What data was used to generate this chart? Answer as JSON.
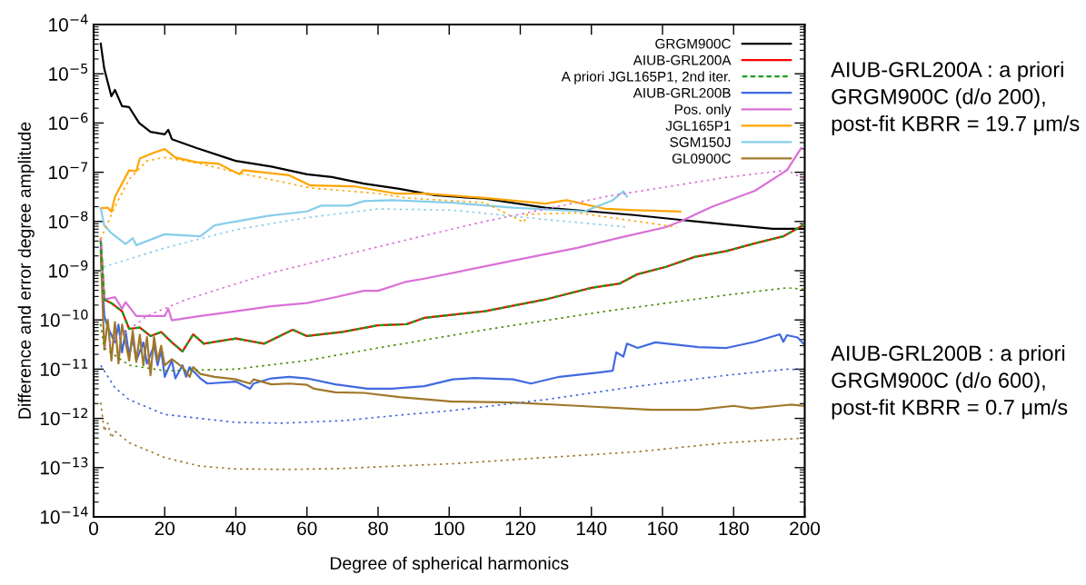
{
  "chart_data": {
    "type": "line",
    "xlabel": "Degree of spherical harmonics",
    "ylabel": "Difference and error degree amplitude",
    "log": "y",
    "xlim": [
      0,
      200
    ],
    "xticks": [
      0,
      20,
      40,
      60,
      80,
      100,
      120,
      140,
      160,
      180,
      200
    ],
    "ylim": [
      1e-14,
      0.0001
    ],
    "yticks": [
      {
        "value": 1e-14,
        "label": "10$^{−14}$"
      },
      {
        "value": 1e-13,
        "label": "10$^{−13}$"
      },
      {
        "value": 1e-12,
        "label": "10$^{−12}$"
      },
      {
        "value": 1e-11,
        "label": "10$^{−11}$"
      },
      {
        "value": 1e-10,
        "label": "10$^{−10}$"
      },
      {
        "value": 1e-09,
        "label": "10$^{−9}$"
      },
      {
        "value": 1e-08,
        "label": "10$^{−8}$"
      },
      {
        "value": 1e-07,
        "label": "10$^{−7}$"
      },
      {
        "value": 1e-06,
        "label": "10$^{−6}$"
      },
      {
        "value": 1e-05,
        "label": "10$^{−5}$"
      },
      {
        "value": 0.0001,
        "label": "10$^{−4}$"
      }
    ],
    "grid": false,
    "legend": "top right",
    "marker": "none",
    "series": [
      {
        "name": "GRGM900C",
        "color": "#000000",
        "line_style": "solid",
        "x": [
          2,
          3,
          5,
          6,
          8,
          10,
          12.8,
          16,
          20,
          21,
          22,
          29,
          40,
          50,
          60,
          67,
          76,
          86,
          96,
          110,
          127,
          140,
          152,
          165,
          178,
          191,
          200
        ],
        "values": [
          4.1e-05,
          1.26e-05,
          3.5e-06,
          4.7e-06,
          2.2e-06,
          2.1e-06,
          1e-06,
          6.6e-07,
          5.9e-07,
          7.3e-07,
          4.7e-07,
          3.1e-07,
          1.7e-07,
          1.3e-07,
          9.1e-08,
          8e-08,
          5.9e-08,
          4.6e-08,
          3.4e-08,
          2.9e-08,
          1.9e-08,
          1.6e-08,
          1.35e-08,
          1.08e-08,
          8.7e-09,
          7.1e-09,
          7.1e-09
        ]
      },
      {
        "name": "AIUB-GRL200A",
        "color": "#ff0000",
        "line_style": "solid",
        "x": [
          2,
          3,
          5,
          8,
          10,
          13,
          16,
          19,
          22,
          25,
          28,
          31,
          40,
          48,
          56,
          60,
          70,
          80,
          88,
          93,
          110,
          127,
          140,
          148,
          153,
          161,
          169,
          178,
          186,
          194,
          200
        ],
        "values": [
          4e-09,
          2.6e-10,
          2.2e-10,
          1.5e-10,
          6.6e-11,
          7e-11,
          4.7e-11,
          5.7e-11,
          3.5e-11,
          2.3e-11,
          5.1e-11,
          3.3e-11,
          4.2e-11,
          3.3e-11,
          6.3e-11,
          4.7e-11,
          5.7e-11,
          7.8e-11,
          8.2e-11,
          1.1e-10,
          1.5e-10,
          2.6e-10,
          4.5e-10,
          5.5e-10,
          8.5e-10,
          1.2e-09,
          1.9e-09,
          2.5e-09,
          3.6e-09,
          5e-09,
          8.7e-09
        ]
      },
      {
        "name": "A priori JGL165P1, 2nd iter.",
        "color": "#1aa01a",
        "line_style": "dashed",
        "x": [
          2,
          3,
          5,
          8,
          10,
          13,
          16,
          19,
          22,
          25,
          28,
          31,
          40,
          48,
          56,
          60,
          70,
          80,
          88,
          93,
          110,
          127,
          140,
          148,
          153,
          161,
          169,
          178,
          186,
          194,
          200
        ],
        "values": [
          4e-09,
          2.6e-10,
          2.2e-10,
          1.5e-10,
          6.6e-11,
          7e-11,
          4.7e-11,
          5.7e-11,
          3.5e-11,
          2.3e-11,
          5.1e-11,
          3.3e-11,
          4.2e-11,
          3.3e-11,
          6.3e-11,
          4.7e-11,
          5.7e-11,
          7.8e-11,
          8.2e-11,
          1.1e-10,
          1.5e-10,
          2.6e-10,
          4.5e-10,
          5.5e-10,
          8.5e-10,
          1.2e-09,
          1.9e-09,
          2.5e-09,
          3.6e-09,
          5e-09,
          8.7e-09
        ]
      },
      {
        "name": "AIUB-GRL200B",
        "color": "#4169e1",
        "line_style": "solid",
        "x": [
          2,
          3,
          4,
          6,
          7,
          8,
          9,
          10,
          11,
          12,
          14,
          15,
          17,
          18,
          19,
          20,
          22,
          23,
          25,
          26,
          27,
          30,
          32,
          40,
          44,
          45,
          50,
          55,
          60,
          68,
          77,
          84,
          93,
          101,
          107,
          118,
          123,
          131,
          142,
          146,
          147,
          149,
          150,
          153,
          158,
          170,
          178,
          186,
          193,
          194,
          195,
          198,
          200
        ],
        "values": [
          3e-09,
          1.2e-10,
          7e-11,
          3.5e-11,
          8e-11,
          2.2e-11,
          6e-11,
          1.8e-11,
          4.5e-11,
          1.5e-11,
          3.5e-11,
          1.3e-11,
          3e-11,
          1.2e-11,
          2.5e-11,
          7e-12,
          1.5e-11,
          6.5e-12,
          1.2e-11,
          7e-12,
          1.1e-11,
          6.5e-12,
          5.1e-12,
          5.6e-12,
          4e-12,
          5.1e-12,
          6.5e-12,
          7e-12,
          6.5e-12,
          4.9e-12,
          4e-12,
          4e-12,
          4.5e-12,
          6.2e-12,
          6.6e-12,
          6.2e-12,
          5.1e-12,
          7e-12,
          8.5e-12,
          9.3e-12,
          2.2e-11,
          1.8e-11,
          3.3e-11,
          2.7e-11,
          3.5e-11,
          2.8e-11,
          2.7e-11,
          3.6e-11,
          5.1e-11,
          3.6e-11,
          4.9e-11,
          4.4e-11,
          3.1e-11
        ]
      },
      {
        "name": "Pos. only",
        "color": "#da70d6",
        "line_style": "solid",
        "x": [
          2,
          3,
          6,
          8,
          9,
          12,
          20,
          21,
          22,
          30,
          40,
          50,
          60,
          67,
          76,
          80,
          88,
          93,
          118,
          136,
          148,
          161,
          165,
          174,
          186,
          195,
          199
        ],
        "values": [
          4.5e-09,
          2.6e-10,
          2.9e-10,
          1.7e-10,
          2.3e-10,
          1.2e-10,
          1.2e-10,
          1.7e-10,
          9.8e-11,
          1.2e-10,
          1.5e-10,
          1.9e-10,
          2.2e-10,
          2.8e-10,
          3.9e-10,
          3.9e-10,
          6e-10,
          6.9e-10,
          1.6e-09,
          2.9e-09,
          4.7e-09,
          7.7e-09,
          1e-08,
          2e-08,
          4.2e-08,
          1.1e-07,
          3.1e-07
        ]
      },
      {
        "name": "JGL165P1",
        "color": "#ffa500",
        "line_style": "solid",
        "x": [
          2,
          4,
          5,
          6,
          10,
          12,
          13,
          17,
          20,
          23,
          29,
          35,
          41,
          42,
          55,
          61,
          73,
          85,
          93,
          110,
          127,
          133,
          144,
          152,
          165
        ],
        "values": [
          1.86e-08,
          1.9e-08,
          1.58e-08,
          3.2e-08,
          1.1e-07,
          1.05e-07,
          1.9e-07,
          2.5e-07,
          2.96e-07,
          2e-07,
          1.6e-07,
          1.5e-07,
          9.1e-08,
          1.1e-07,
          8.7e-08,
          5.4e-08,
          5.2e-08,
          3.7e-08,
          3.7e-08,
          3e-08,
          2.3e-08,
          2.7e-08,
          1.8e-08,
          1.7e-08,
          1.6e-08
        ]
      },
      {
        "name": "SGM150J",
        "color": "#87ceeb",
        "line_style": "solid",
        "x": [
          2,
          3,
          5,
          9,
          11,
          12,
          20,
          30,
          34,
          40,
          49,
          60,
          64,
          72,
          76,
          84,
          101,
          118,
          138,
          146,
          149,
          150
        ],
        "values": [
          1.86e-08,
          8.3e-09,
          5.8e-09,
          3.5e-09,
          4.6e-09,
          3.3e-09,
          5.5e-09,
          5e-09,
          8.3e-09,
          1e-08,
          1.3e-08,
          1.6e-08,
          2.1e-08,
          2.1e-08,
          2.6e-08,
          2.7e-08,
          2.4e-08,
          1.9e-08,
          1.6e-08,
          2.7e-08,
          4.1e-08,
          3.2e-08
        ]
      },
      {
        "name": "GL0900C",
        "color": "#a0782a",
        "line_style": "solid",
        "x": [
          2,
          3,
          4,
          5,
          6,
          7,
          8,
          10,
          11,
          12,
          13,
          14,
          15,
          16,
          17,
          18,
          19,
          20,
          22,
          25,
          27,
          28,
          30,
          34,
          40,
          44,
          45,
          50,
          55,
          60,
          62,
          68,
          76,
          86,
          101,
          118,
          136,
          157,
          170,
          180,
          185,
          196,
          200
        ],
        "values": [
          2.5e-09,
          2.5e-11,
          1e-10,
          1.5e-11,
          9e-11,
          1.3e-11,
          8e-11,
          1.5e-11,
          6e-11,
          1.4e-11,
          5e-11,
          1.2e-11,
          4.5e-11,
          7.5e-12,
          4.5e-11,
          1.5e-11,
          3e-11,
          1.2e-11,
          1.6e-11,
          1.1e-11,
          7e-12,
          1.1e-11,
          8e-12,
          7e-12,
          6.2e-12,
          5.1e-12,
          6.2e-12,
          4.9e-12,
          5.1e-12,
          4.8e-12,
          4e-12,
          3.4e-12,
          3.3e-12,
          2.7e-12,
          2.2e-12,
          2.1e-12,
          1.8e-12,
          1.5e-12,
          1.5e-12,
          1.8e-12,
          1.6e-12,
          1.9e-12,
          1.8e-12
        ]
      },
      {
        "color": "#ffa500",
        "line_style": "dotted",
        "x": [
          2,
          6,
          10,
          15,
          20,
          30,
          40,
          61,
          80,
          88,
          110,
          121,
          122,
          136,
          164
        ],
        "values": [
          4.4e-09,
          2e-08,
          7.2e-08,
          1.7e-07,
          2e-07,
          1.5e-07,
          1e-07,
          4.8e-08,
          3.7e-08,
          3e-08,
          2.4e-08,
          9.6e-09,
          1.4e-08,
          1.5e-08,
          7.7e-09
        ]
      },
      {
        "color": "#87ceeb",
        "line_style": "dotted",
        "x": [
          2,
          3,
          20,
          40,
          60,
          80,
          101,
          127,
          150
        ],
        "values": [
          9.1e-10,
          1.2e-09,
          2.9e-09,
          6.8e-09,
          1.2e-08,
          1.8e-08,
          1.7e-08,
          1.1e-08,
          7.7e-09
        ]
      },
      {
        "color": "#da70d6",
        "line_style": "dotted",
        "x": [
          3,
          10,
          15,
          26,
          50,
          76,
          89,
          110,
          144,
          178,
          195,
          200
        ],
        "values": [
          2.8e-11,
          6.3e-11,
          1.2e-10,
          2.6e-10,
          9.1e-10,
          2.6e-09,
          4.4e-09,
          1e-08,
          3.2e-08,
          7.9e-08,
          1.1e-07,
          7.2e-08
        ]
      },
      {
        "color": "#4b8b0a",
        "line_style": "dotted",
        "x": [
          2,
          3,
          10,
          20,
          30,
          40,
          60,
          80,
          110,
          144,
          178,
          195,
          200
        ],
        "values": [
          8.2e-11,
          2.7e-11,
          1.2e-11,
          9.3e-12,
          9.6e-12,
          1e-11,
          1.5e-11,
          2.7e-11,
          6.3e-11,
          1.5e-10,
          3.2e-10,
          4.5e-10,
          4.2e-10
        ]
      },
      {
        "color": "#4169e1",
        "line_style": "dotted",
        "x": [
          2,
          6,
          10,
          20,
          30,
          40,
          53,
          70,
          88,
          101,
          127,
          153,
          178,
          195,
          200
        ],
        "values": [
          1.2e-11,
          4.2e-12,
          2.4e-12,
          1.2e-12,
          1e-12,
          8.3e-13,
          8e-13,
          9e-13,
          1.2e-12,
          1.45e-12,
          2.4e-12,
          4.5e-12,
          7.5e-12,
          1e-11,
          9.6e-12
        ]
      },
      {
        "color": "#a0782a",
        "line_style": "dotted",
        "x": [
          2,
          3,
          4,
          5,
          6,
          10,
          20,
          30,
          40,
          55,
          70,
          88,
          101,
          127,
          153,
          178,
          200
        ],
        "values": [
          2.1e-12,
          5.5e-13,
          8e-13,
          4e-13,
          5.5e-13,
          3.2e-13,
          1.6e-13,
          1.07e-13,
          9.4e-14,
          9.2e-14,
          9.6e-14,
          1.1e-13,
          1.2e-13,
          1.6e-13,
          2.1e-13,
          3.2e-13,
          4e-13
        ]
      }
    ],
    "annotations": [
      "AIUB-GRL200A : a priori GRGM900C (d/o 200), post-fit KBRR = 19.7 μm/s",
      "AIUB-GRL200B : a priori GRGM900C (d/o 600), post-fit KBRR = 0.7 μm/s"
    ]
  }
}
